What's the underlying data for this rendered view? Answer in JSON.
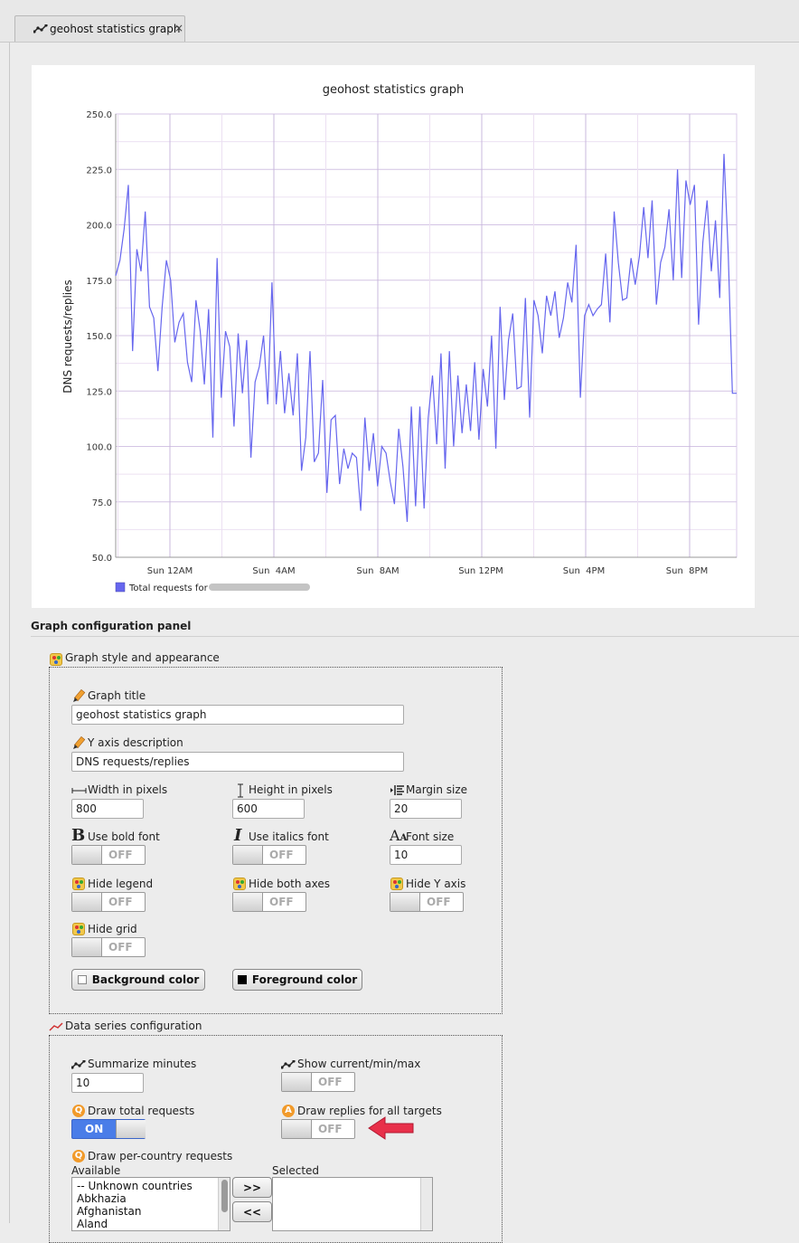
{
  "tab": {
    "label": "geohost statistics graph",
    "close": "×"
  },
  "chart_data": {
    "type": "line",
    "title": "geohost statistics graph",
    "ylabel": "DNS requests/replies",
    "xlabel": "",
    "ylim": [
      50,
      250
    ],
    "yticks": [
      "250.0",
      "225.0",
      "200.0",
      "175.0",
      "150.0",
      "125.0",
      "100.0",
      "75.0",
      "50.0"
    ],
    "xticks": [
      "Sun 12AM",
      "Sun  4AM",
      "Sun  8AM",
      "Sun 12PM",
      "Sun  4PM",
      "Sun  8PM"
    ],
    "grid": true,
    "legend_position": "bottom-left",
    "series": [
      {
        "name": "Total requests for",
        "color": "#6666ee",
        "values": [
          177,
          184,
          198,
          218,
          143,
          189,
          179,
          206,
          163,
          158,
          134,
          163,
          184,
          175,
          147,
          156,
          160,
          138,
          129,
          166,
          152,
          128,
          162,
          104,
          185,
          122,
          152,
          145,
          109,
          151,
          124,
          148,
          95,
          129,
          136,
          150,
          119,
          174,
          119,
          143,
          115,
          133,
          114,
          142,
          89,
          104,
          143,
          93,
          97,
          130,
          79,
          112,
          114,
          83,
          99,
          90,
          97,
          95,
          71,
          113,
          89,
          106,
          82,
          100,
          97,
          84,
          74,
          108,
          91,
          66,
          118,
          73,
          118,
          72,
          113,
          132,
          101,
          142,
          90,
          143,
          100,
          132,
          106,
          128,
          107,
          138,
          103,
          135,
          118,
          150,
          99,
          163,
          121,
          148,
          160,
          126,
          127,
          167,
          113,
          166,
          159,
          142,
          168,
          159,
          170,
          149,
          158,
          174,
          165,
          191,
          122,
          159,
          164,
          159,
          162,
          164,
          187,
          156,
          206,
          183,
          166,
          167,
          185,
          173,
          186,
          208,
          185,
          211,
          164,
          183,
          190,
          207,
          175,
          225,
          176,
          220,
          209,
          218,
          155,
          192,
          211,
          179,
          202,
          167,
          232,
          187,
          124,
          124
        ]
      }
    ]
  },
  "config": {
    "panel_title": "Graph configuration panel",
    "style_group": {
      "legend": "Graph style and appearance",
      "graph_title_label": "Graph title",
      "graph_title_value": "geohost statistics graph",
      "y_axis_label": "Y axis description",
      "y_axis_value": "DNS requests/replies",
      "width_label": "Width in pixels",
      "width_value": "800",
      "height_label": "Height in pixels",
      "height_value": "600",
      "margin_label": "Margin size",
      "margin_value": "20",
      "bold_label": "Use bold font",
      "bold_state": "OFF",
      "italics_label": "Use italics font",
      "italics_state": "OFF",
      "font_size_label": "Font size",
      "font_size_value": "10",
      "hide_legend_label": "Hide legend",
      "hide_legend_state": "OFF",
      "hide_axes_label": "Hide both axes",
      "hide_axes_state": "OFF",
      "hide_y_label": "Hide Y axis",
      "hide_y_state": "OFF",
      "hide_grid_label": "Hide grid",
      "hide_grid_state": "OFF",
      "bg_color_label": "Background color",
      "fg_color_label": "Foreground color"
    },
    "series_group": {
      "legend": "Data series configuration",
      "summarize_label": "Summarize minutes",
      "summarize_value": "10",
      "show_cmm_label": "Show current/min/max",
      "show_cmm_state": "OFF",
      "draw_total_label": "Draw total requests",
      "draw_total_state": "ON",
      "draw_replies_label": "Draw replies for all targets",
      "draw_replies_state": "OFF",
      "per_country_label": "Draw per-country requests",
      "available_label": "Available",
      "selected_label": "Selected",
      "available_items": [
        "-- Unknown countries",
        "Abkhazia",
        "Afghanistan",
        "Aland"
      ],
      "add_button": ">>",
      "remove_button": "<<"
    }
  }
}
